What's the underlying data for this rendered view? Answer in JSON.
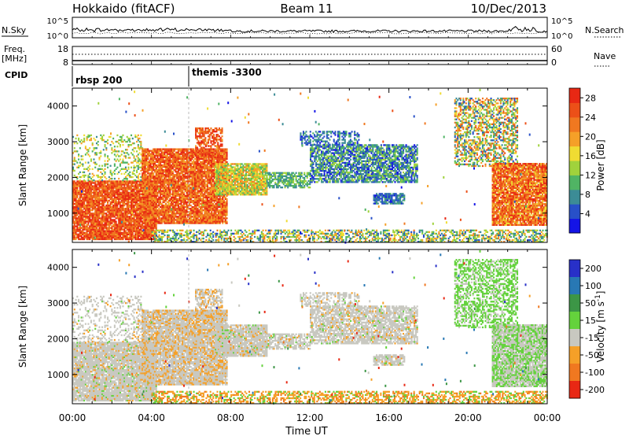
{
  "header": {
    "title": "Hokkaido (fitACF)",
    "beam": "Beam 11",
    "date": "10/Dec/2013"
  },
  "top_panels": {
    "nsky_label": "N.Sky",
    "nsearch_label": "N.Search",
    "nsky_ticks": [
      "10^5",
      "10^0"
    ],
    "nsearch_ticks": [
      "10^5",
      "10^0"
    ],
    "freq_label": "Freq.",
    "freq_unit": "[MHz]",
    "freq_ticks": [
      "18",
      "8"
    ],
    "nave_label": "Nave",
    "nave_ticks": [
      "60",
      "0"
    ],
    "cpid_label": "CPID",
    "cpid_entries": [
      "rbsp 200",
      "themis -3300"
    ]
  },
  "chart_data": [
    {
      "type": "heatmap",
      "name": "power",
      "ylabel": "Slant Range [km]",
      "xlabel": "",
      "x_ticks": [
        "00:00",
        "04:00",
        "08:00",
        "12:00",
        "16:00",
        "20:00",
        "00:00"
      ],
      "x_range_hours": [
        0,
        24
      ],
      "y_ticks": [
        1000,
        2000,
        3000,
        4000
      ],
      "ylim": [
        180,
        4500
      ],
      "colorbar": {
        "label": "Power [dB]",
        "ticks": [
          4,
          8,
          12,
          16,
          20,
          24,
          28
        ],
        "range": [
          0,
          30
        ],
        "colors": [
          "#1414e6",
          "#2850c8",
          "#3c8c96",
          "#50b464",
          "#a0d23c",
          "#f0dc32",
          "#f5a028",
          "#f07820",
          "#ec5018",
          "#e82814"
        ]
      }
    },
    {
      "type": "heatmap",
      "name": "velocity",
      "ylabel": "Slant Range [km]",
      "xlabel": "Time UT",
      "x_ticks": [
        "00:00",
        "04:00",
        "08:00",
        "12:00",
        "16:00",
        "20:00",
        "00:00"
      ],
      "x_range_hours": [
        0,
        24
      ],
      "y_ticks": [
        1000,
        2000,
        3000,
        4000
      ],
      "ylim": [
        180,
        4500
      ],
      "colorbar": {
        "label": "Velocity [m s^-1]",
        "ticks": [
          "200",
          "100",
          "50",
          "15",
          "-15",
          "-50",
          "-100",
          "-200"
        ],
        "colors": [
          "#2830c8",
          "#2878b4",
          "#3c9646",
          "#64d23c",
          "#c8c8c0",
          "#f5a028",
          "#f07820",
          "#e82814"
        ]
      }
    }
  ]
}
